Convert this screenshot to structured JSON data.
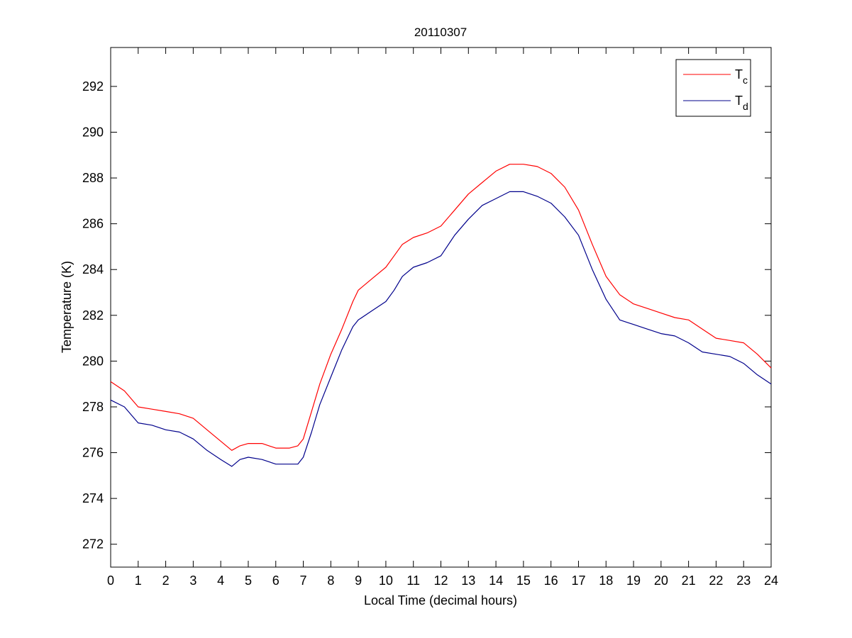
{
  "chart_data": {
    "type": "line",
    "title": "20110307",
    "xlabel": "Local Time (decimal hours)",
    "ylabel": "Temperature (K)",
    "xlim": [
      0,
      24
    ],
    "ylim": [
      271,
      293.7
    ],
    "xticks": [
      0,
      1,
      2,
      3,
      4,
      5,
      6,
      7,
      8,
      9,
      10,
      11,
      12,
      13,
      14,
      15,
      16,
      17,
      18,
      19,
      20,
      21,
      22,
      23,
      24
    ],
    "yticks": [
      272,
      274,
      276,
      278,
      280,
      282,
      284,
      286,
      288,
      290,
      292
    ],
    "grid": false,
    "legend_position": "top-right",
    "series": [
      {
        "name": "T_c",
        "legend_main": "T",
        "legend_sub": "c",
        "color": "#ff0000",
        "x": [
          0,
          0.5,
          1,
          1.5,
          2,
          2.5,
          3,
          3.5,
          4,
          4.4,
          4.7,
          5,
          5.5,
          6,
          6.5,
          6.8,
          7,
          7.3,
          7.6,
          8,
          8.4,
          8.8,
          9,
          9.5,
          10,
          10.3,
          10.6,
          11,
          11.5,
          12,
          12.5,
          13,
          13.5,
          14,
          14.5,
          15,
          15.5,
          16,
          16.5,
          17,
          17.5,
          18,
          18.5,
          19,
          19.5,
          20,
          20.5,
          21,
          21.5,
          22,
          22.5,
          23,
          23.5,
          24
        ],
        "y": [
          279.1,
          278.7,
          278.0,
          277.9,
          277.8,
          277.7,
          277.5,
          277.0,
          276.5,
          276.1,
          276.3,
          276.4,
          276.4,
          276.2,
          276.2,
          276.3,
          276.6,
          277.8,
          279.0,
          280.3,
          281.4,
          282.6,
          283.1,
          283.6,
          284.1,
          284.6,
          285.1,
          285.4,
          285.6,
          285.9,
          286.6,
          287.3,
          287.8,
          288.3,
          288.6,
          288.6,
          288.5,
          288.2,
          287.6,
          286.6,
          285.1,
          283.7,
          282.9,
          282.5,
          282.3,
          282.1,
          281.9,
          281.8,
          281.4,
          281.0,
          280.9,
          280.8,
          280.3,
          279.7
        ]
      },
      {
        "name": "T_d",
        "legend_main": "T",
        "legend_sub": "d",
        "color": "#00008b",
        "x": [
          0,
          0.5,
          1,
          1.5,
          2,
          2.5,
          3,
          3.5,
          4,
          4.4,
          4.7,
          5,
          5.5,
          6,
          6.5,
          6.8,
          7,
          7.3,
          7.6,
          8,
          8.4,
          8.8,
          9,
          9.5,
          10,
          10.3,
          10.6,
          11,
          11.5,
          12,
          12.5,
          13,
          13.5,
          14,
          14.5,
          15,
          15.5,
          16,
          16.5,
          17,
          17.5,
          18,
          18.5,
          19,
          19.5,
          20,
          20.5,
          21,
          21.5,
          22,
          22.5,
          23,
          23.5,
          24
        ],
        "y": [
          278.3,
          278.0,
          277.3,
          277.2,
          277.0,
          276.9,
          276.6,
          276.1,
          275.7,
          275.4,
          275.7,
          275.8,
          275.7,
          275.5,
          275.5,
          275.5,
          275.8,
          276.9,
          278.1,
          279.3,
          280.5,
          281.5,
          281.8,
          282.2,
          282.6,
          283.1,
          283.7,
          284.1,
          284.3,
          284.6,
          285.5,
          286.2,
          286.8,
          287.1,
          287.4,
          287.4,
          287.2,
          286.9,
          286.3,
          285.5,
          284.0,
          282.7,
          281.8,
          281.6,
          281.4,
          281.2,
          281.1,
          280.8,
          280.4,
          280.3,
          280.2,
          279.9,
          279.4,
          279.0
        ]
      }
    ]
  }
}
